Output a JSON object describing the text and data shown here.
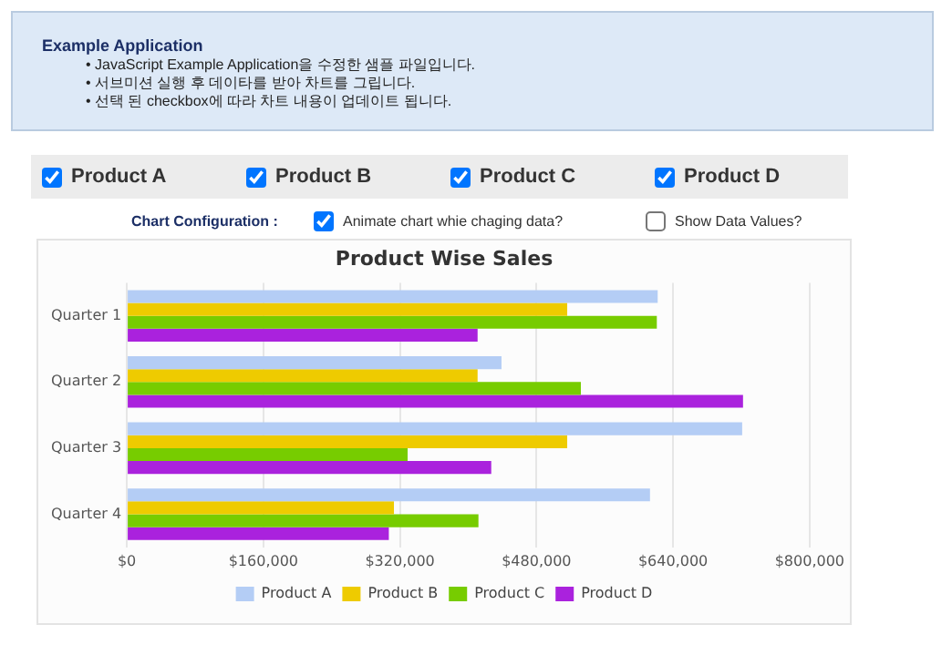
{
  "chart_data": {
    "type": "bar",
    "orientation": "horizontal",
    "title": "Product Wise Sales",
    "categories": [
      "Quarter 1",
      "Quarter 2",
      "Quarter 3",
      "Quarter 4"
    ],
    "series": [
      {
        "name": "Product A",
        "color": "#b4cdf5",
        "values": [
          622000,
          439000,
          721000,
          613000
        ]
      },
      {
        "name": "Product B",
        "color": "#eecb00",
        "values": [
          516000,
          411000,
          516000,
          313000
        ]
      },
      {
        "name": "Product C",
        "color": "#77cc00",
        "values": [
          621000,
          532000,
          329000,
          412000
        ]
      },
      {
        "name": "Product D",
        "color": "#aa22dd",
        "values": [
          411000,
          722000,
          427000,
          307000
        ]
      }
    ],
    "xlim": [
      0,
      800000
    ],
    "xticks": [
      {
        "value": 0,
        "label": "$0"
      },
      {
        "value": 160000,
        "label": "$160,000"
      },
      {
        "value": 320000,
        "label": "$320,000"
      },
      {
        "value": 480000,
        "label": "$480,000"
      },
      {
        "value": 640000,
        "label": "$640,000"
      },
      {
        "value": 800000,
        "label": "$800,000"
      }
    ],
    "grid": "x",
    "legend": "bottom",
    "annotations": [
      "Example Application",
      "• JavaScript Example Application을 수정한 샘플 파일입니다.",
      "• 서브미션 실행 후 데이타를 받아 차트를 그립니다.",
      "• 선택 된 checkbox에 따라 차트 내용이 업데이트 됩니다.",
      "Chart Configuration :",
      "Animate chart whie chaging data?",
      "Show Data Values?"
    ]
  }
}
